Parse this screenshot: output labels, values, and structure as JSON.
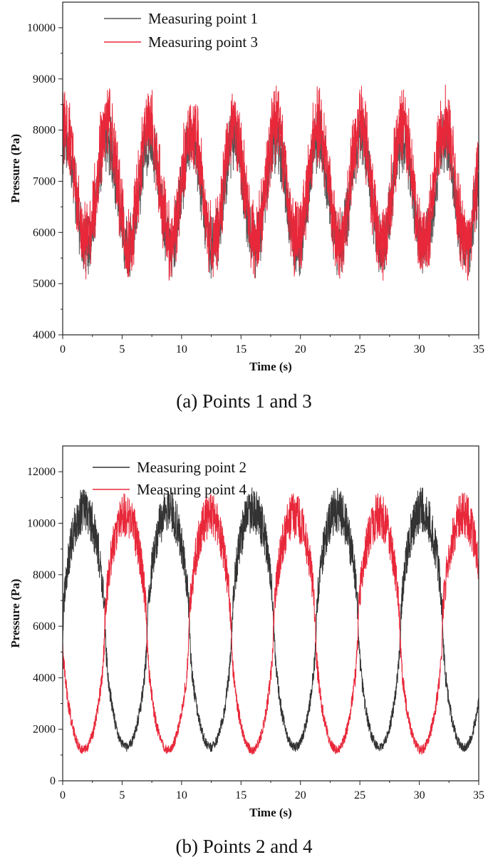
{
  "chart_data": [
    {
      "type": "line",
      "caption": "(a) Points 1 and 3",
      "xlabel": "Time (s)",
      "ylabel": "Pressure (Pa)",
      "xlim": [
        0,
        35
      ],
      "ylim": [
        4000,
        10500
      ],
      "xticks": [
        0,
        5,
        10,
        15,
        20,
        25,
        30,
        35
      ],
      "yticks": [
        4000,
        5000,
        6000,
        7000,
        8000,
        9000,
        10000
      ],
      "legend_position": "top-left",
      "period": 3.55,
      "series": [
        {
          "name": "Measuring point 1",
          "color": "#555555",
          "mean": 6750,
          "amplitude": 1050,
          "phase_t0": 0.2,
          "noise": 650,
          "peak_times": [
            0.2,
            3.7,
            7.3,
            10.8,
            14.3,
            17.8,
            21.4,
            24.9,
            28.4,
            32.0
          ]
        },
        {
          "name": "Measuring point 3",
          "color": "#e8283a",
          "mean": 6950,
          "amplitude": 1150,
          "phase_t0": 0.2,
          "noise": 800,
          "peak_times": [
            0.2,
            3.7,
            7.3,
            10.8,
            14.3,
            17.8,
            21.4,
            24.9,
            28.4,
            32.0
          ]
        }
      ]
    },
    {
      "type": "line",
      "caption": "(b) Points 2 and 4",
      "xlabel": "Time (s)",
      "ylabel": "Pressure (Pa)",
      "xlim": [
        0,
        35
      ],
      "ylim": [
        0,
        13000
      ],
      "xticks": [
        0,
        5,
        10,
        15,
        20,
        25,
        30,
        35
      ],
      "yticks": [
        0,
        2000,
        4000,
        6000,
        8000,
        10000,
        12000
      ],
      "legend_position": "top-left",
      "period": 7.1,
      "series": [
        {
          "name": "Measuring point 2",
          "color": "#333333",
          "low": 1300,
          "high": 10500,
          "phase_t0": 1.8,
          "noise": 900,
          "minimum_times": [
            5.3,
            12.3,
            19.3,
            26.2,
            33.2
          ]
        },
        {
          "name": "Measuring point 4",
          "color": "#e8283a",
          "low": 1200,
          "high": 10300,
          "phase_t0": 5.3,
          "noise": 900,
          "minimum_times": [
            1.8,
            8.8,
            15.8,
            22.7,
            29.7
          ]
        }
      ]
    }
  ]
}
